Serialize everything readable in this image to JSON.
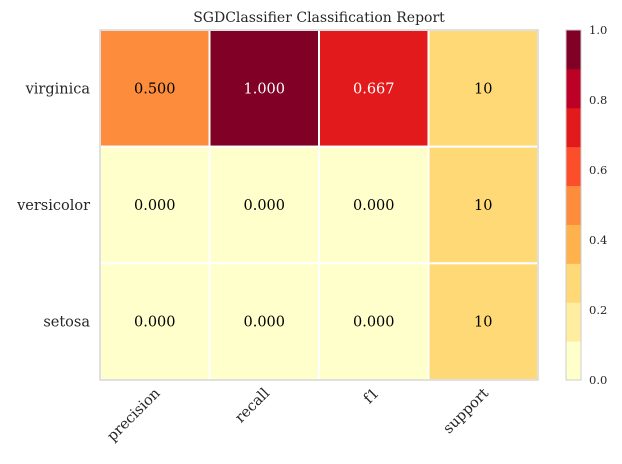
{
  "chart_data": {
    "type": "heatmap",
    "title": "SGDClassifier Classification Report",
    "rows": [
      "virginica",
      "versicolor",
      "setosa"
    ],
    "columns": [
      "precision",
      "recall",
      "f1",
      "support"
    ],
    "values": [
      [
        0.5,
        1.0,
        0.667,
        10
      ],
      [
        0.0,
        0.0,
        0.0,
        10
      ],
      [
        0.0,
        0.0,
        0.0,
        10
      ]
    ],
    "cell_labels": [
      [
        "0.500",
        "1.000",
        "0.667",
        "10"
      ],
      [
        "0.000",
        "0.000",
        "0.000",
        "10"
      ],
      [
        "0.000",
        "0.000",
        "0.000",
        "10"
      ]
    ],
    "support_color_value": 0.333,
    "colorbar": {
      "range": [
        0.0,
        1.0
      ],
      "ticks": [
        "0.0",
        "0.2",
        "0.4",
        "0.6",
        "0.8",
        "1.0"
      ],
      "colormap": "YlOrRd",
      "bins": [
        "#ffffcc",
        "#ffeda0",
        "#fed976",
        "#feb24c",
        "#fd8d3c",
        "#fc4e2a",
        "#e31a1c",
        "#bd0026",
        "#800026"
      ]
    },
    "text_colors": {
      "dark": "#000000",
      "light": "#ffffff"
    }
  }
}
